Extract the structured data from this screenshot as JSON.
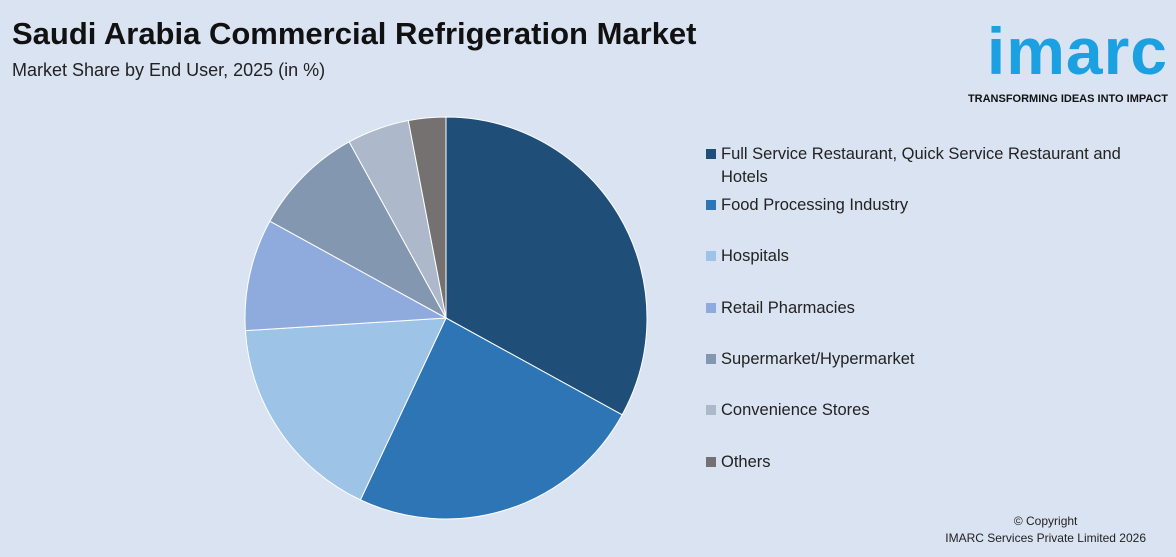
{
  "chart_data": {
    "type": "pie",
    "title": "Saudi Arabia Commercial Refrigeration Market",
    "subtitle": "Market Share by End User, 2025 (in %)",
    "categories": [
      "Full Service Restaurant, Quick Service Restaurant and Hotels",
      "Food Processing Industry",
      "Hospitals",
      "Retail Pharmacies",
      "Supermarket/Hypermarket",
      "Convenience Stores",
      "Others"
    ],
    "values": [
      33,
      24,
      17,
      9,
      9,
      5,
      3
    ],
    "colors": [
      "#1f4e79",
      "#2e75b6",
      "#9dc3e6",
      "#8faadc",
      "#8497b0",
      "#adb9ca",
      "#767171"
    ]
  },
  "logo": {
    "name": "imarc",
    "tagline": "TRANSFORMING IDEAS INTO IMPACT"
  },
  "footer": {
    "copyright": "© Copyright",
    "company": "IMARC Services Private Limited 2026"
  }
}
